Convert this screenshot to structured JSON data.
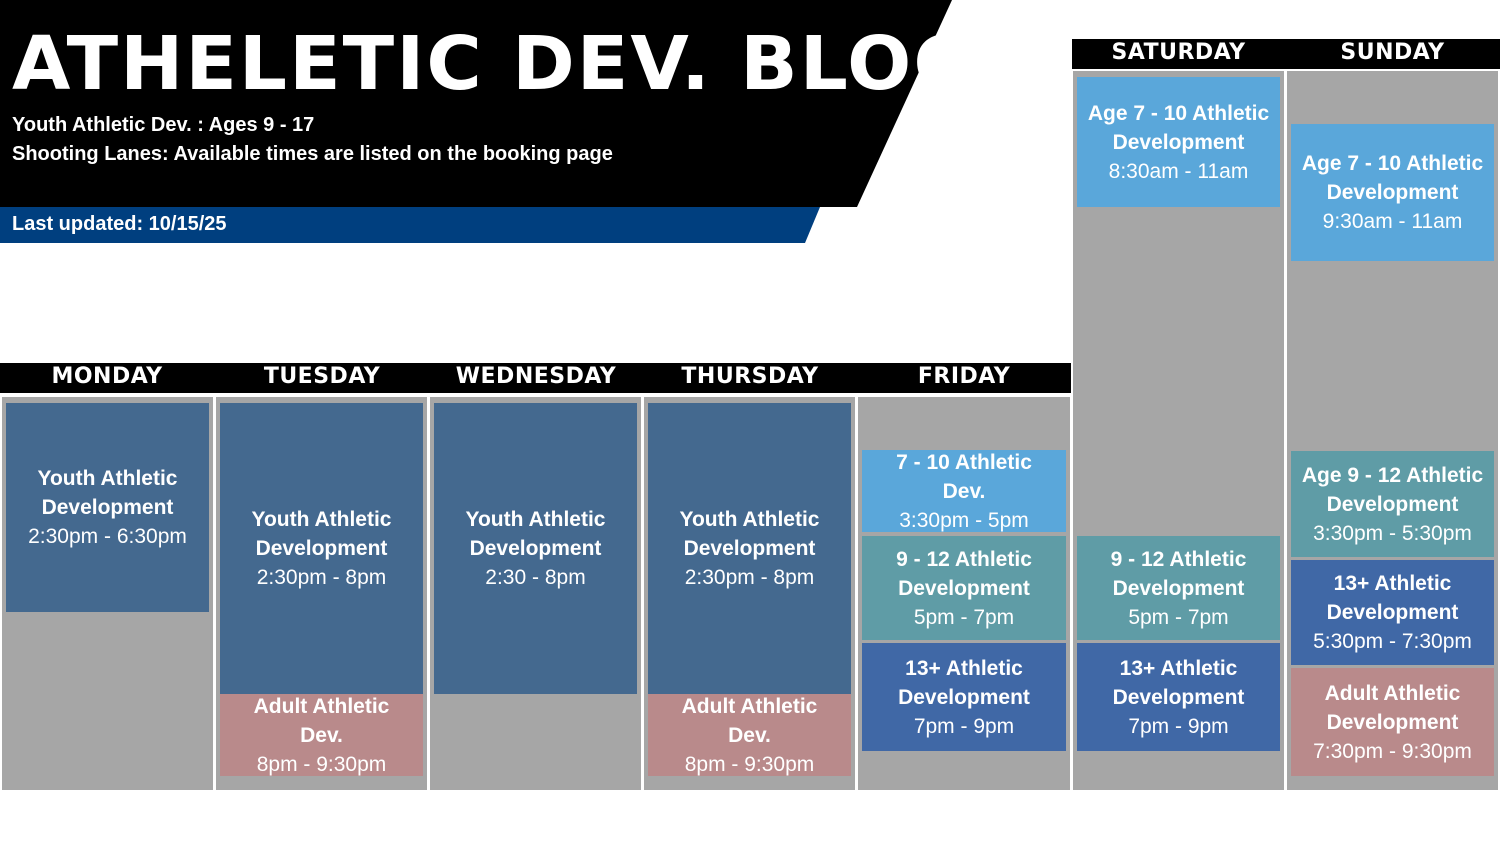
{
  "header": {
    "title": "ATHELETIC DEV. BLOCKS",
    "line1": "Youth Athletic Dev. : Ages 9 - 17",
    "line2": "Shooting Lanes: Available times are listed on the booking page",
    "updated": "Last updated: 10/15/25"
  },
  "days": {
    "monday": "MONDAY",
    "tuesday": "TUESDAY",
    "wednesday": "WEDNESDAY",
    "thursday": "THURSDAY",
    "friday": "FRIDAY",
    "saturday": "SATURDAY",
    "sunday": "SUNDAY"
  },
  "colors": {
    "youth": "#44698f",
    "adult": "#b98a8b",
    "age7": "#5aa7da",
    "age9": "#5f9ca6",
    "teen": "#4068a6",
    "column": "#a6a6a6"
  },
  "blocks": {
    "mon_youth": {
      "title": "Youth Athletic Development",
      "time": "2:30pm - 6:30pm"
    },
    "tue_youth": {
      "title": "Youth Athletic Development",
      "time": "2:30pm - 8pm"
    },
    "tue_adult": {
      "title": "Adult Athletic Dev.",
      "time": "8pm - 9:30pm"
    },
    "wed_youth": {
      "title": "Youth Athletic Development",
      "time": "2:30 - 8pm"
    },
    "thu_youth": {
      "title": "Youth Athletic Development",
      "time": "2:30pm - 8pm"
    },
    "thu_adult": {
      "title": "Adult Athletic Dev.",
      "time": "8pm - 9:30pm"
    },
    "fri_710": {
      "title": "7 - 10 Athletic Dev.",
      "time": "3:30pm - 5pm"
    },
    "fri_912": {
      "title": "9 - 12 Athletic Development",
      "time": "5pm - 7pm"
    },
    "fri_13": {
      "title": "13+ Athletic Development",
      "time": "7pm - 9pm"
    },
    "sat_710": {
      "title": "Age 7 - 10 Athletic Development",
      "time": "8:30am - 11am"
    },
    "sat_912": {
      "title": "9 - 12 Athletic Development",
      "time": "5pm - 7pm"
    },
    "sat_13": {
      "title": "13+ Athletic Development",
      "time": "7pm - 9pm"
    },
    "sun_710": {
      "title": "Age 7 - 10 Athletic Development",
      "time": "9:30am - 11am"
    },
    "sun_912": {
      "title": "Age 9 - 12 Athletic Development",
      "time": "3:30pm - 5:30pm"
    },
    "sun_13": {
      "title": "13+ Athletic Development",
      "time": "5:30pm - 7:30pm"
    },
    "sun_adult": {
      "title": "Adult Athletic Development",
      "time": "7:30pm - 9:30pm"
    }
  }
}
